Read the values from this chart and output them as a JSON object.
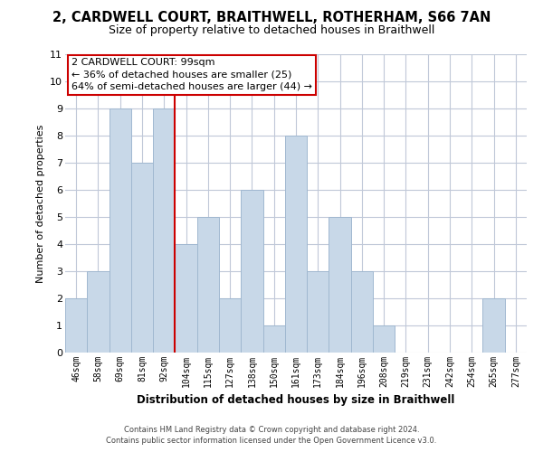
{
  "title": "2, CARDWELL COURT, BRAITHWELL, ROTHERHAM, S66 7AN",
  "subtitle": "Size of property relative to detached houses in Braithwell",
  "xlabel": "Distribution of detached houses by size in Braithwell",
  "ylabel": "Number of detached properties",
  "bin_labels": [
    "46sqm",
    "58sqm",
    "69sqm",
    "81sqm",
    "92sqm",
    "104sqm",
    "115sqm",
    "127sqm",
    "138sqm",
    "150sqm",
    "161sqm",
    "173sqm",
    "184sqm",
    "196sqm",
    "208sqm",
    "219sqm",
    "231sqm",
    "242sqm",
    "254sqm",
    "265sqm",
    "277sqm"
  ],
  "bar_heights": [
    2,
    3,
    9,
    7,
    9,
    4,
    5,
    2,
    6,
    1,
    8,
    3,
    5,
    3,
    1,
    0,
    0,
    0,
    0,
    2,
    0
  ],
  "bar_color": "#c8d8e8",
  "bar_edge_color": "#a0b8d0",
  "annotation_title": "2 CARDWELL COURT: 99sqm",
  "annotation_line1": "← 36% of detached houses are smaller (25)",
  "annotation_line2": "64% of semi-detached houses are larger (44) →",
  "red_line_color": "#cc0000",
  "ylim": [
    0,
    11
  ],
  "yticks": [
    0,
    1,
    2,
    3,
    4,
    5,
    6,
    7,
    8,
    9,
    10,
    11
  ],
  "footer_line1": "Contains HM Land Registry data © Crown copyright and database right 2024.",
  "footer_line2": "Contains public sector information licensed under the Open Government Licence v3.0.",
  "background_color": "#ffffff",
  "grid_color": "#c0c8d8"
}
